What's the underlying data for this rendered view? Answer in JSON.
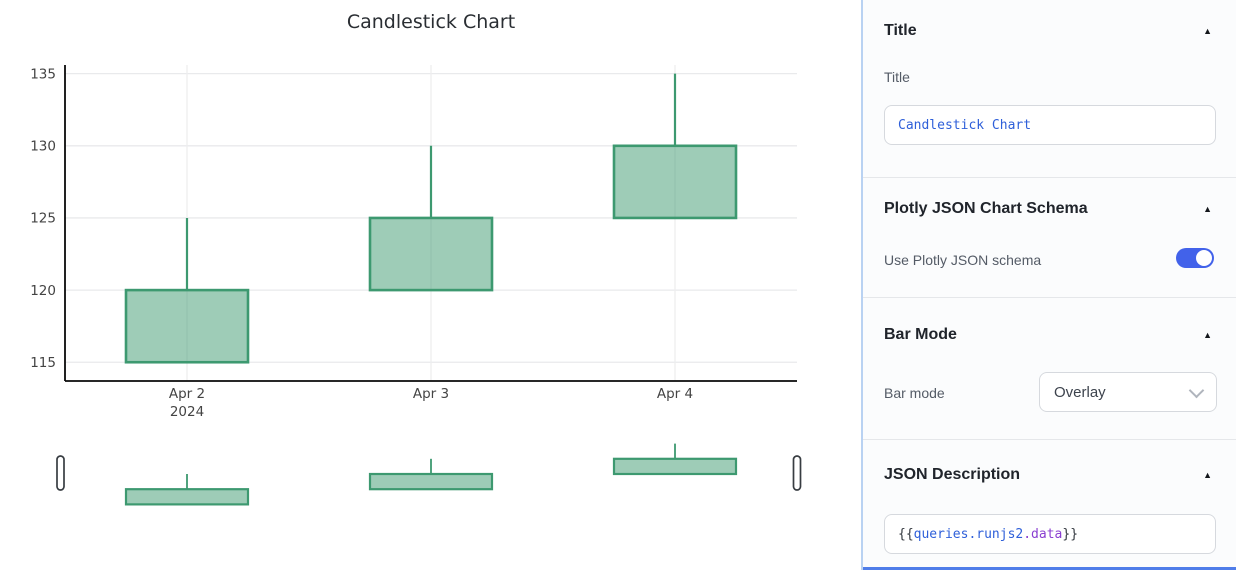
{
  "chart_data": {
    "type": "candlestick",
    "title": "Candlestick Chart",
    "categories": [
      "Apr 2",
      "Apr 3",
      "Apr 4"
    ],
    "candles": [
      {
        "date": "Apr 2",
        "year": "2024",
        "open": 115,
        "high": 125,
        "low": 115,
        "close": 120
      },
      {
        "date": "Apr 3",
        "open": 120,
        "high": 130,
        "low": 120,
        "close": 125
      },
      {
        "date": "Apr 4",
        "open": 125,
        "high": 135,
        "low": 125,
        "close": 130
      }
    ],
    "axis": {
      "yticks": [
        135,
        130,
        125,
        120,
        115
      ],
      "ylim": [
        113.7,
        135.6
      ],
      "rangeslider_ylim": [
        114.8,
        135.2
      ],
      "grid": true
    },
    "legend": "none",
    "has_rangeslider": true,
    "colors": {
      "increasing_line": "#3D9970",
      "increasing_fill": "rgba(61,153,112,0.5)",
      "gridline": "#e9eaec",
      "axis_line": "#0a0a0a",
      "tick_label": "#444444"
    }
  },
  "inspector": {
    "collapse_icon": "▲",
    "colors": {
      "accent": "#4262EA",
      "panel_border": "#B9D2F2",
      "bottom_bar": "#4F7DE9",
      "code_blue": "#2E5FD9",
      "code_purple": "#8A3FD1",
      "code_dark": "#32373E"
    },
    "title_section": {
      "header": "Title",
      "field_label": "Title",
      "value": "Candlestick Chart"
    },
    "schema_section": {
      "header": "Plotly JSON Chart Schema",
      "toggle_label": "Use Plotly JSON schema",
      "toggle_on": true
    },
    "bar_mode_section": {
      "header": "Bar Mode",
      "field_label": "Bar mode",
      "value": "Overlay"
    },
    "json_section": {
      "header": "JSON Description",
      "value": "{{queries.runjs2.data}}",
      "parts": {
        "open_braces": "{{",
        "path_primary": "queries.runjs2",
        "path_secondary": ".data",
        "close_braces": "}}"
      }
    }
  }
}
